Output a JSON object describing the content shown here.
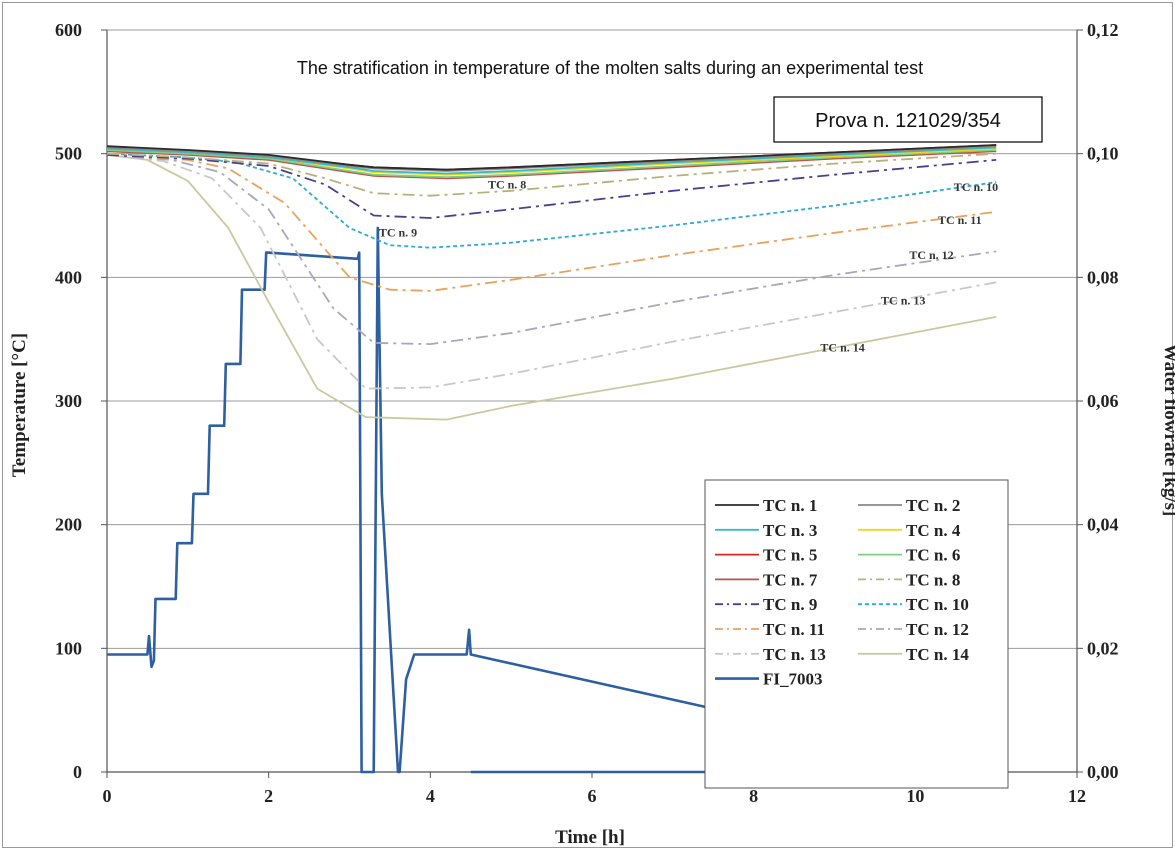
{
  "chart_data": {
    "type": "line",
    "title": "The stratification in temperature of the molten salts during an experimental test",
    "annotation_box": "Prova n. 121029/354",
    "xlabel": "Time [h]",
    "ylabel": "Temperature [°C]",
    "y2label": "Water flowrate [kg/s]",
    "xlim": [
      0,
      12
    ],
    "ylim": [
      0,
      600
    ],
    "y2lim": [
      0,
      0.12
    ],
    "x_ticks": [
      "0",
      "2",
      "4",
      "6",
      "8",
      "10",
      "12"
    ],
    "y_ticks": [
      "0",
      "100",
      "200",
      "300",
      "400",
      "500",
      "600"
    ],
    "y2_ticks": [
      "0,00",
      "0,02",
      "0,04",
      "0,06",
      "0,08",
      "0,10",
      "0,12"
    ],
    "grid": "horizontal",
    "legend_position": "bottom-right",
    "series": [
      {
        "name": "TC n. 1",
        "color": "#2b2b2b",
        "dash": "solid",
        "axis": "left",
        "x": [
          0,
          1,
          2,
          3,
          3.3,
          4.2,
          5,
          7,
          9,
          11
        ],
        "y": [
          506,
          503,
          499,
          491,
          489,
          487,
          489,
          495,
          501,
          507
        ]
      },
      {
        "name": "TC n. 2",
        "color": "#8a8a8a",
        "dash": "solid",
        "axis": "left",
        "x": [
          0,
          1,
          2,
          3,
          3.3,
          4.2,
          5,
          7,
          9,
          11
        ],
        "y": [
          505,
          502,
          498,
          490,
          488,
          486,
          488,
          494,
          500,
          506
        ]
      },
      {
        "name": "TC n. 3",
        "color": "#3cb8c8",
        "dash": "solid",
        "axis": "left",
        "x": [
          0,
          1,
          2,
          3,
          3.3,
          4.2,
          5,
          7,
          9,
          11
        ],
        "y": [
          504,
          501,
          497,
          489,
          486,
          484,
          486,
          493,
          499,
          505
        ]
      },
      {
        "name": "TC n. 4",
        "color": "#e6dc1e",
        "dash": "solid",
        "axis": "left",
        "x": [
          0,
          1,
          2,
          3,
          3.3,
          4.2,
          5,
          7,
          9,
          11
        ],
        "y": [
          504,
          501,
          497,
          488,
          485,
          483,
          485,
          492,
          498,
          504
        ]
      },
      {
        "name": "TC n. 5",
        "color": "#d02a20",
        "dash": "solid",
        "axis": "left",
        "x": [
          0,
          1,
          2,
          3,
          3.3,
          4.2,
          5,
          7,
          9,
          11
        ],
        "y": [
          505,
          502,
          498,
          491,
          489,
          487,
          489,
          495,
          501,
          507
        ]
      },
      {
        "name": "TC n. 6",
        "color": "#7fd07f",
        "dash": "solid",
        "axis": "left",
        "x": [
          0,
          1,
          2,
          3,
          3.3,
          4.2,
          5,
          7,
          9,
          11
        ],
        "y": [
          503,
          500,
          496,
          486,
          483,
          481,
          483,
          490,
          497,
          503
        ]
      },
      {
        "name": "TC n. 7",
        "color": "#c0504d",
        "dash": "solid",
        "axis": "left",
        "x": [
          0,
          1,
          2,
          3,
          3.3,
          4.2,
          5,
          7,
          9,
          11
        ],
        "y": [
          502,
          499,
          495,
          485,
          482,
          480,
          482,
          489,
          496,
          502
        ]
      },
      {
        "name": "TC n. 8",
        "color": "#b8b27a",
        "dash": "dashdot",
        "axis": "left",
        "x": [
          0,
          1,
          2,
          2.7,
          3.3,
          4.0,
          5,
          7,
          9,
          11
        ],
        "y": [
          500,
          497,
          492,
          480,
          468,
          466,
          470,
          482,
          492,
          500
        ]
      },
      {
        "name": "TC n. 9",
        "color": "#4a3f8f",
        "dash": "dashdot",
        "axis": "left",
        "x": [
          0,
          1,
          2,
          2.7,
          3.3,
          4.0,
          5,
          7,
          9,
          11
        ],
        "y": [
          499,
          496,
          490,
          475,
          450,
          448,
          455,
          470,
          483,
          495
        ]
      },
      {
        "name": "TC n. 10",
        "color": "#2eaad6",
        "dash": "dotted",
        "axis": "left",
        "x": [
          0,
          1,
          1.6,
          2.3,
          3.0,
          3.5,
          4.0,
          5,
          7,
          9,
          11
        ],
        "y": [
          500,
          497,
          493,
          480,
          440,
          426,
          424,
          428,
          442,
          458,
          477
        ]
      },
      {
        "name": "TC n. 11",
        "color": "#e8a25a",
        "dash": "dashdot",
        "axis": "left",
        "x": [
          0,
          1,
          1.5,
          2.2,
          3.0,
          3.5,
          4.0,
          5,
          7,
          9,
          11
        ],
        "y": [
          499,
          495,
          488,
          460,
          400,
          390,
          389,
          398,
          418,
          436,
          453
        ]
      },
      {
        "name": "TC n. 12",
        "color": "#a8a8b8",
        "dash": "dashdot",
        "axis": "left",
        "x": [
          0,
          0.8,
          1.4,
          2.0,
          2.8,
          3.3,
          4.0,
          5,
          7,
          9,
          11
        ],
        "y": [
          499,
          495,
          485,
          455,
          375,
          347,
          346,
          355,
          380,
          402,
          421
        ]
      },
      {
        "name": "TC n. 13",
        "color": "#c8c8c8",
        "dash": "dashdot",
        "axis": "left",
        "x": [
          0,
          0.7,
          1.3,
          1.9,
          2.6,
          3.2,
          4.0,
          5,
          7,
          9,
          11
        ],
        "y": [
          499,
          494,
          480,
          440,
          350,
          310,
          311,
          322,
          348,
          372,
          396
        ]
      },
      {
        "name": "TC n. 14",
        "color": "#c9c9a0",
        "dash": "solid",
        "axis": "left",
        "x": [
          0,
          0.5,
          1.0,
          1.5,
          2.0,
          2.6,
          3.2,
          4.2,
          5,
          7,
          9,
          11
        ],
        "y": [
          499,
          495,
          478,
          440,
          380,
          310,
          287,
          285,
          296,
          318,
          343,
          368
        ]
      },
      {
        "name": "FI_7003",
        "color": "#2e5fa0",
        "dash": "solid",
        "axis": "right",
        "x": [
          0,
          0.5,
          0.52,
          0.55,
          0.58,
          0.6,
          0.62,
          0.85,
          0.87,
          0.89,
          1.05,
          1.07,
          1.09,
          1.25,
          1.27,
          1.29,
          1.45,
          1.47,
          1.49,
          1.65,
          1.67,
          1.69,
          1.95,
          1.97,
          1.99,
          3.1,
          3.12,
          3.15,
          3.2,
          3.25,
          3.3,
          3.35,
          3.4,
          3.6,
          3.62,
          3.7,
          3.8,
          4.4,
          4.45,
          4.48,
          4.5,
          11
        ],
        "y": [
          0.019,
          0.019,
          0.022,
          0.017,
          0.018,
          0.028,
          0.028,
          0.028,
          0.037,
          0.037,
          0.037,
          0.045,
          0.045,
          0.045,
          0.056,
          0.056,
          0.056,
          0.066,
          0.066,
          0.066,
          0.078,
          0.078,
          0.078,
          0.084,
          0.084,
          0.083,
          0.084,
          0.0,
          0.0,
          0.0,
          0.0,
          0.088,
          0.045,
          0.0,
          0.0,
          0.015,
          0.019,
          0.019,
          0.019,
          0.023,
          0.019,
          0.0
        ]
      },
      {
        "name": "",
        "color": "#2e5fa0",
        "dash": "solid",
        "axis": "right",
        "x": [
          4.5,
          11
        ],
        "y": [
          0.0,
          0.0
        ]
      }
    ],
    "inline_labels": [
      {
        "text": "TC n. 8",
        "x": 4.95,
        "y": 472
      },
      {
        "text": "TC n. 9",
        "x": 3.6,
        "y": 433
      },
      {
        "text": "TC n. 10",
        "x": 10.75,
        "y": 470
      },
      {
        "text": "TC n. 11",
        "x": 10.55,
        "y": 443
      },
      {
        "text": "TC n. 12",
        "x": 10.2,
        "y": 415
      },
      {
        "text": "TC n. 13",
        "x": 9.85,
        "y": 378
      },
      {
        "text": "TC n. 14",
        "x": 9.1,
        "y": 340
      }
    ]
  }
}
